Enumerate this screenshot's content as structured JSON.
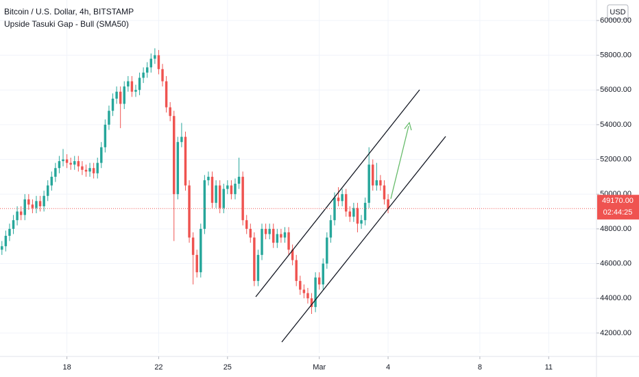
{
  "chart_data": {
    "type": "candlestick",
    "title": "Bitcoin / U.S. Dollar, 4h, BITSTAMP",
    "subtitle": "Upside Tasuki Gap - Bull (SMA50)",
    "currency": "USD",
    "up_color": "#26a69a",
    "down_color": "#ef5350",
    "grid": true,
    "open": [
      46800,
      47000,
      47600,
      48000,
      48500,
      49000,
      48800,
      49700,
      49400,
      49200,
      49600,
      49300,
      49900,
      50500,
      51000,
      51500,
      51900,
      52000,
      51800,
      51700,
      51900,
      51600,
      51400,
      51300,
      51500,
      51200,
      51800,
      52700,
      54000,
      54800,
      55500,
      55900,
      55200,
      56200,
      56500,
      55900,
      56000,
      56700,
      57000,
      57300,
      57800,
      58000,
      57200,
      56500,
      55000,
      54500,
      50000,
      53000,
      53300,
      50500,
      47500,
      46500,
      45500,
      48000,
      50800,
      51000,
      49500,
      50500,
      49200,
      50300,
      50500,
      50000,
      50600,
      51000,
      48500,
      48000,
      47500,
      45000,
      46500,
      48000,
      47700,
      48000,
      47200,
      47700,
      47500,
      47800,
      46800,
      46200,
      45000,
      44500,
      44300,
      44000,
      43500,
      45200,
      44800,
      46000,
      47500,
      48500,
      49800,
      49600,
      50000,
      49000,
      48700,
      49200,
      48300,
      48500,
      49500,
      51700,
      50500,
      50800,
      50500,
      49700
    ],
    "high": [
      47300,
      47900,
      48300,
      48800,
      49300,
      49300,
      50000,
      50000,
      49700,
      49900,
      49900,
      50200,
      50800,
      51300,
      51800,
      52200,
      52600,
      52300,
      52100,
      52200,
      52200,
      51900,
      51700,
      51800,
      51800,
      52100,
      53000,
      54300,
      55100,
      55800,
      56200,
      56200,
      56500,
      56800,
      56800,
      56300,
      57000,
      57300,
      57600,
      58100,
      58400,
      58300,
      57500,
      56800,
      55300,
      54800,
      53300,
      54100,
      53600,
      50800,
      47800,
      46800,
      48300,
      51100,
      51300,
      51300,
      50800,
      50800,
      50600,
      50800,
      50800,
      50900,
      52100,
      51300,
      48800,
      48300,
      47800,
      46800,
      48300,
      48300,
      48300,
      48300,
      48000,
      48000,
      48100,
      48100,
      47100,
      46500,
      45300,
      44800,
      44600,
      44300,
      45500,
      45500,
      46300,
      47800,
      48800,
      50100,
      50400,
      50300,
      50300,
      49300,
      49500,
      49500,
      48800,
      49800,
      52700,
      52000,
      51800,
      51100,
      50800,
      50000
    ],
    "low": [
      46500,
      46700,
      47300,
      47700,
      48200,
      48500,
      48500,
      49100,
      48900,
      48900,
      49000,
      49000,
      49600,
      50200,
      50700,
      51200,
      51600,
      51500,
      51400,
      51400,
      51300,
      51100,
      51000,
      51000,
      50900,
      50900,
      51500,
      52400,
      53700,
      54500,
      55200,
      53800,
      54900,
      55900,
      55600,
      55600,
      55700,
      56400,
      56700,
      57000,
      57500,
      56900,
      56200,
      54700,
      54200,
      47300,
      49700,
      52700,
      50200,
      47200,
      44800,
      45200,
      45200,
      47700,
      50500,
      49200,
      49200,
      48900,
      48900,
      50000,
      49700,
      49700,
      50300,
      48200,
      47700,
      47200,
      44700,
      44700,
      46200,
      47400,
      47400,
      46900,
      46900,
      47200,
      47200,
      46500,
      45900,
      44700,
      44200,
      44000,
      43700,
      43100,
      43200,
      44500,
      44500,
      45700,
      47200,
      48200,
      49300,
      49300,
      48700,
      48400,
      48400,
      47800,
      48000,
      48200,
      49200,
      50200,
      50200,
      50200,
      49400,
      48900
    ],
    "close": [
      47000,
      47600,
      48000,
      48500,
      49000,
      48800,
      49700,
      49400,
      49200,
      49600,
      49300,
      49900,
      50500,
      51000,
      51500,
      51900,
      52000,
      51800,
      51700,
      51900,
      51600,
      51400,
      51300,
      51500,
      51200,
      51800,
      52700,
      54000,
      54800,
      55500,
      55900,
      55200,
      56200,
      56500,
      55900,
      56000,
      56700,
      57000,
      57300,
      57800,
      58000,
      57200,
      56500,
      55000,
      54500,
      50000,
      53000,
      53300,
      50500,
      47500,
      46500,
      45500,
      48000,
      50800,
      51000,
      49500,
      50500,
      49200,
      50300,
      50500,
      50000,
      50600,
      51000,
      48500,
      48000,
      47500,
      45000,
      46500,
      48000,
      47700,
      48000,
      47200,
      47700,
      47500,
      47800,
      46800,
      46200,
      45000,
      44500,
      44300,
      44000,
      43500,
      45200,
      44800,
      46000,
      47500,
      48500,
      49800,
      49600,
      50000,
      49000,
      48700,
      49200,
      48300,
      48500,
      49500,
      51700,
      50500,
      50800,
      50500,
      49700,
      49170
    ],
    "xlim": [
      -0.5,
      155.5
    ],
    "xticks": [
      {
        "value": 17,
        "label": "18"
      },
      {
        "value": 41,
        "label": "22"
      },
      {
        "value": 59,
        "label": "25"
      },
      {
        "value": 83,
        "label": "Mar"
      },
      {
        "value": 101,
        "label": "4"
      },
      {
        "value": 125,
        "label": "8"
      },
      {
        "value": 143,
        "label": "11"
      }
    ],
    "ylim": [
      40850,
      61180
    ],
    "yticks": [
      {
        "value": 42000,
        "label": "42000.00"
      },
      {
        "value": 44000,
        "label": "44000.00"
      },
      {
        "value": 46000,
        "label": "46000.00"
      },
      {
        "value": 48000,
        "label": "48000.00"
      },
      {
        "value": 50000,
        "label": "50000.00"
      },
      {
        "value": 52000,
        "label": "52000.00"
      },
      {
        "value": 54000,
        "label": "54000.00"
      },
      {
        "value": 56000,
        "label": "56000.00"
      },
      {
        "value": 58000,
        "label": "58000.00"
      },
      {
        "value": 60000,
        "label": "60000.00"
      }
    ],
    "last_price": {
      "value": 49170,
      "label": "49170.00"
    },
    "countdown": "02:44:25"
  }
}
